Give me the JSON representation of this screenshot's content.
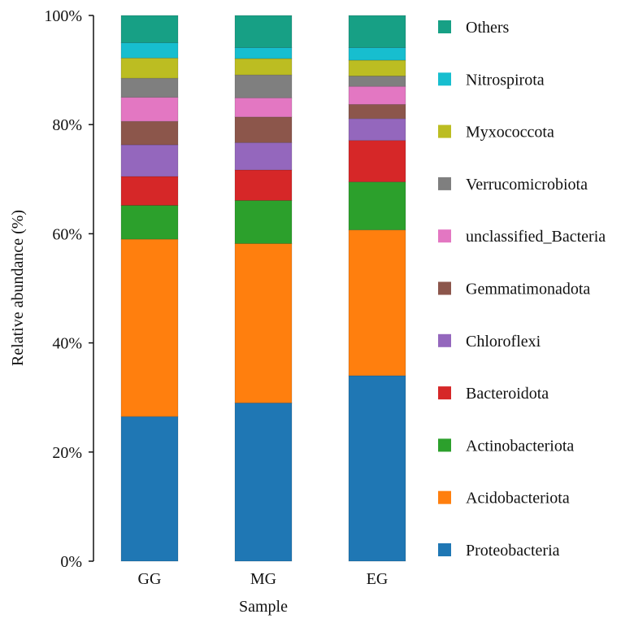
{
  "chart_data": {
    "type": "bar",
    "stacked": true,
    "title": "",
    "xlabel": "Sample",
    "ylabel": "Relative abundance (%)",
    "ylim": [
      0,
      100
    ],
    "yticks": [
      "0%",
      "20%",
      "40%",
      "60%",
      "80%",
      "100%"
    ],
    "categories": [
      "GG",
      "MG",
      "EG"
    ],
    "series": [
      {
        "name": "Proteobacteria",
        "color": "#1f77b4",
        "values": [
          26.5,
          29.0,
          34.0
        ]
      },
      {
        "name": "Acidobacteriota",
        "color": "#ff7f0e",
        "values": [
          32.5,
          29.2,
          26.7
        ]
      },
      {
        "name": "Actinobacteriota",
        "color": "#2ca02c",
        "values": [
          6.2,
          7.9,
          8.8
        ]
      },
      {
        "name": "Bacteroidota",
        "color": "#d62728",
        "values": [
          5.3,
          5.6,
          7.6
        ]
      },
      {
        "name": "Chloroflexi",
        "color": "#9467bd",
        "values": [
          5.8,
          5.0,
          4.0
        ]
      },
      {
        "name": "Gemmatimonadota",
        "color": "#8c564b",
        "values": [
          4.3,
          4.7,
          2.6
        ]
      },
      {
        "name": "unclassified_Bacteria",
        "color": "#e377c2",
        "values": [
          4.4,
          3.5,
          3.3
        ]
      },
      {
        "name": "Verrucomicrobiota",
        "color": "#7f7f7f",
        "values": [
          3.5,
          4.2,
          1.9
        ]
      },
      {
        "name": "Myxococcota",
        "color": "#bcbd22",
        "values": [
          3.7,
          3.0,
          2.9
        ]
      },
      {
        "name": "Nitrospirota",
        "color": "#17becf",
        "values": [
          2.8,
          2.0,
          2.3
        ]
      },
      {
        "name": "Others",
        "color": "#17a085",
        "values": [
          5.0,
          5.9,
          5.9
        ]
      }
    ],
    "legend_position": "right",
    "legend_order": "top-to-bottom reversed"
  }
}
